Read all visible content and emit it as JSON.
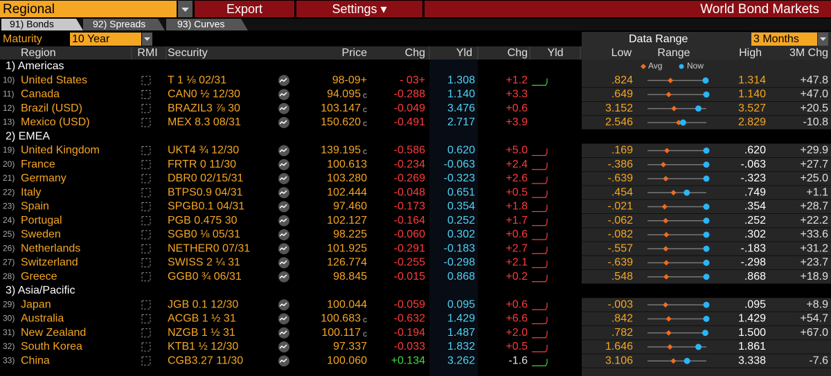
{
  "toolbar": {
    "selector": "Regional",
    "export": "Export",
    "settings": "Settings ▾",
    "title": "World Bond Markets"
  },
  "tabs": [
    "91) Bonds",
    "92) Spreads",
    "93) Curves"
  ],
  "controls": {
    "maturity_label": "Maturity",
    "maturity": "10 Year",
    "range_label": "Data Range",
    "range": "3 Months"
  },
  "legend": {
    "avg": "Avg",
    "now": "Now"
  },
  "headers": {
    "region": "Region",
    "rmi": "RMI",
    "security": "Security",
    "price": "Price",
    "chg": "Chg",
    "yld": "Yld",
    "ychg": "Chg",
    "spark": "Yld",
    "low": "Low",
    "range": "Range",
    "high": "High",
    "m3": "3M Chg"
  },
  "groups": [
    {
      "label": "1) Americas",
      "rows": [
        {
          "n": "10)",
          "region": "United States",
          "security": "T 1 ⅛ 02/31",
          "price": "98-09+",
          "chg": "- 03+",
          "yld": "1.308",
          "ychg": "+1.2",
          "low": ".824",
          "high": "1.314",
          "m3": "+47.8",
          "avg": 1.015
        },
        {
          "n": "11)",
          "region": "Canada",
          "security": "CAN0 ½ 12/30",
          "price": "94.095",
          "cond": "c",
          "chg": "-0.288",
          "yld": "1.140",
          "ychg": "+3.3",
          "low": ".649",
          "high": "1.140",
          "m3": "+47.0",
          "avg": 0.826
        },
        {
          "n": "12)",
          "region": "Brazil (USD)",
          "security": "BRAZIL3 ⅞ 30",
          "price": "103.147",
          "cond": "c",
          "chg": "-0.049",
          "yld": "3.476",
          "ychg": "+0.6",
          "low": "3.152",
          "high": "3.527",
          "m3": "+20.5",
          "avg": 3.321
        },
        {
          "n": "13)",
          "region": "Mexico (USD)",
          "security": "MEX 8.3 08/31",
          "price": "150.620",
          "cond": "c",
          "chg": "-0.491",
          "yld": "2.717",
          "ychg": "+3.9",
          "low": "2.546",
          "high": "2.829",
          "m3": "-10.8",
          "avg": 2.696
        }
      ]
    },
    {
      "label": "2) EMEA",
      "rows": [
        {
          "n": "19)",
          "region": "United Kingdom",
          "security": "UKT4 ¾ 12/30",
          "price": "139.195",
          "cond": "c",
          "chg": "-0.586",
          "yld": "0.620",
          "ychg": "+5.0",
          "low": ".169",
          "high": ".620",
          "m3": "+29.9",
          "avg": 0.318
        },
        {
          "n": "20)",
          "region": "France",
          "security": "FRTR 0 11/30",
          "price": "100.613",
          "chg": "-0.234",
          "yld": "-0.063",
          "ychg": "+2.4",
          "low": "-.386",
          "high": "-.063",
          "m3": "+27.7",
          "avg": -0.299
        },
        {
          "n": "21)",
          "region": "Germany",
          "security": "DBR0 02/15/31",
          "price": "103.280",
          "chg": "-0.269",
          "yld": "-0.323",
          "ychg": "+2.6",
          "low": "-.639",
          "high": "-.323",
          "m3": "+25.0",
          "avg": -0.541
        },
        {
          "n": "22)",
          "region": "Italy",
          "security": "BTPS0.9 04/31",
          "price": "102.444",
          "chg": "-0.048",
          "yld": "0.651",
          "ychg": "+0.5",
          "low": ".454",
          "high": ".749",
          "m3": "+1.1",
          "avg": 0.584
        },
        {
          "n": "23)",
          "region": "Spain",
          "security": "SPGB0.1 04/31",
          "price": "97.460",
          "chg": "-0.173",
          "yld": "0.354",
          "ychg": "+1.8",
          "low": "-.021",
          "high": ".354",
          "m3": "+28.7",
          "avg": 0.088
        },
        {
          "n": "24)",
          "region": "Portugal",
          "security": "PGB 0.475 30",
          "price": "102.127",
          "chg": "-0.164",
          "yld": "0.252",
          "ychg": "+1.7",
          "low": "-.062",
          "high": ".252",
          "m3": "+22.2",
          "avg": 0.035
        },
        {
          "n": "25)",
          "region": "Sweden",
          "security": "SGB0 ⅛ 05/31",
          "price": "98.225",
          "chg": "-0.060",
          "yld": "0.302",
          "ychg": "+0.6",
          "low": "-.082",
          "high": ".302",
          "m3": "+33.6",
          "avg": 0.041
        },
        {
          "n": "26)",
          "region": "Netherlands",
          "security": "NETHER0 07/31",
          "price": "101.925",
          "chg": "-0.291",
          "yld": "-0.183",
          "ychg": "+2.7",
          "low": "-.557",
          "high": "-.183",
          "m3": "+31.2",
          "avg": -0.441
        },
        {
          "n": "27)",
          "region": "Switzerland",
          "security": "SWISS 2 ¼ 31",
          "price": "126.774",
          "chg": "-0.255",
          "yld": "-0.298",
          "ychg": "+2.1",
          "low": "-.639",
          "high": "-.298",
          "m3": "+23.7",
          "avg": -0.53
        },
        {
          "n": "28)",
          "region": "Greece",
          "security": "GGB0 ¾ 06/31",
          "price": "98.845",
          "chg": "-0.015",
          "yld": "0.868",
          "ychg": "+0.2",
          "low": ".548",
          "high": ".868",
          "m3": "+18.9",
          "avg": 0.65
        }
      ]
    },
    {
      "label": "3) Asia/Pacific",
      "rows": [
        {
          "n": "29)",
          "region": "Japan",
          "security": "JGB 0.1 12/30",
          "price": "100.044",
          "chg": "-0.059",
          "yld": "0.095",
          "ychg": "+0.6",
          "low": "-.003",
          "high": ".095",
          "m3": "+8.9",
          "avg": 0.027
        },
        {
          "n": "30)",
          "region": "Australia",
          "security": "ACGB 1 ½ 31",
          "price": "100.683",
          "cond": "c",
          "chg": "-0.632",
          "yld": "1.429",
          "ychg": "+6.6",
          "low": ".842",
          "high": "1.429",
          "m3": "+54.7",
          "avg": 1.053
        },
        {
          "n": "31)",
          "region": "New Zealand",
          "security": "NZGB 1 ½ 31",
          "price": "100.117",
          "cond": "c",
          "chg": "-0.194",
          "yld": "1.487",
          "ychg": "+2.0",
          "low": ".782",
          "high": "1.500",
          "m3": "+67.0",
          "avg": 1.04
        },
        {
          "n": "32)",
          "region": "South Korea",
          "security": "KTB1 ½ 12/30",
          "price": "97.337",
          "chg": "-0.033",
          "yld": "1.832",
          "ychg": "+0.5",
          "low": "1.646",
          "high": "1.861",
          "avg": 1.728
        },
        {
          "n": "33)",
          "region": "China",
          "security": "CGB3.27 11/30",
          "price": "100.060",
          "chg": "+0.134",
          "yld": "3.262",
          "ychg": "-1.6",
          "low": "3.106",
          "high": "3.338",
          "m3": "-7.6",
          "avg": 3.208
        }
      ]
    }
  ]
}
